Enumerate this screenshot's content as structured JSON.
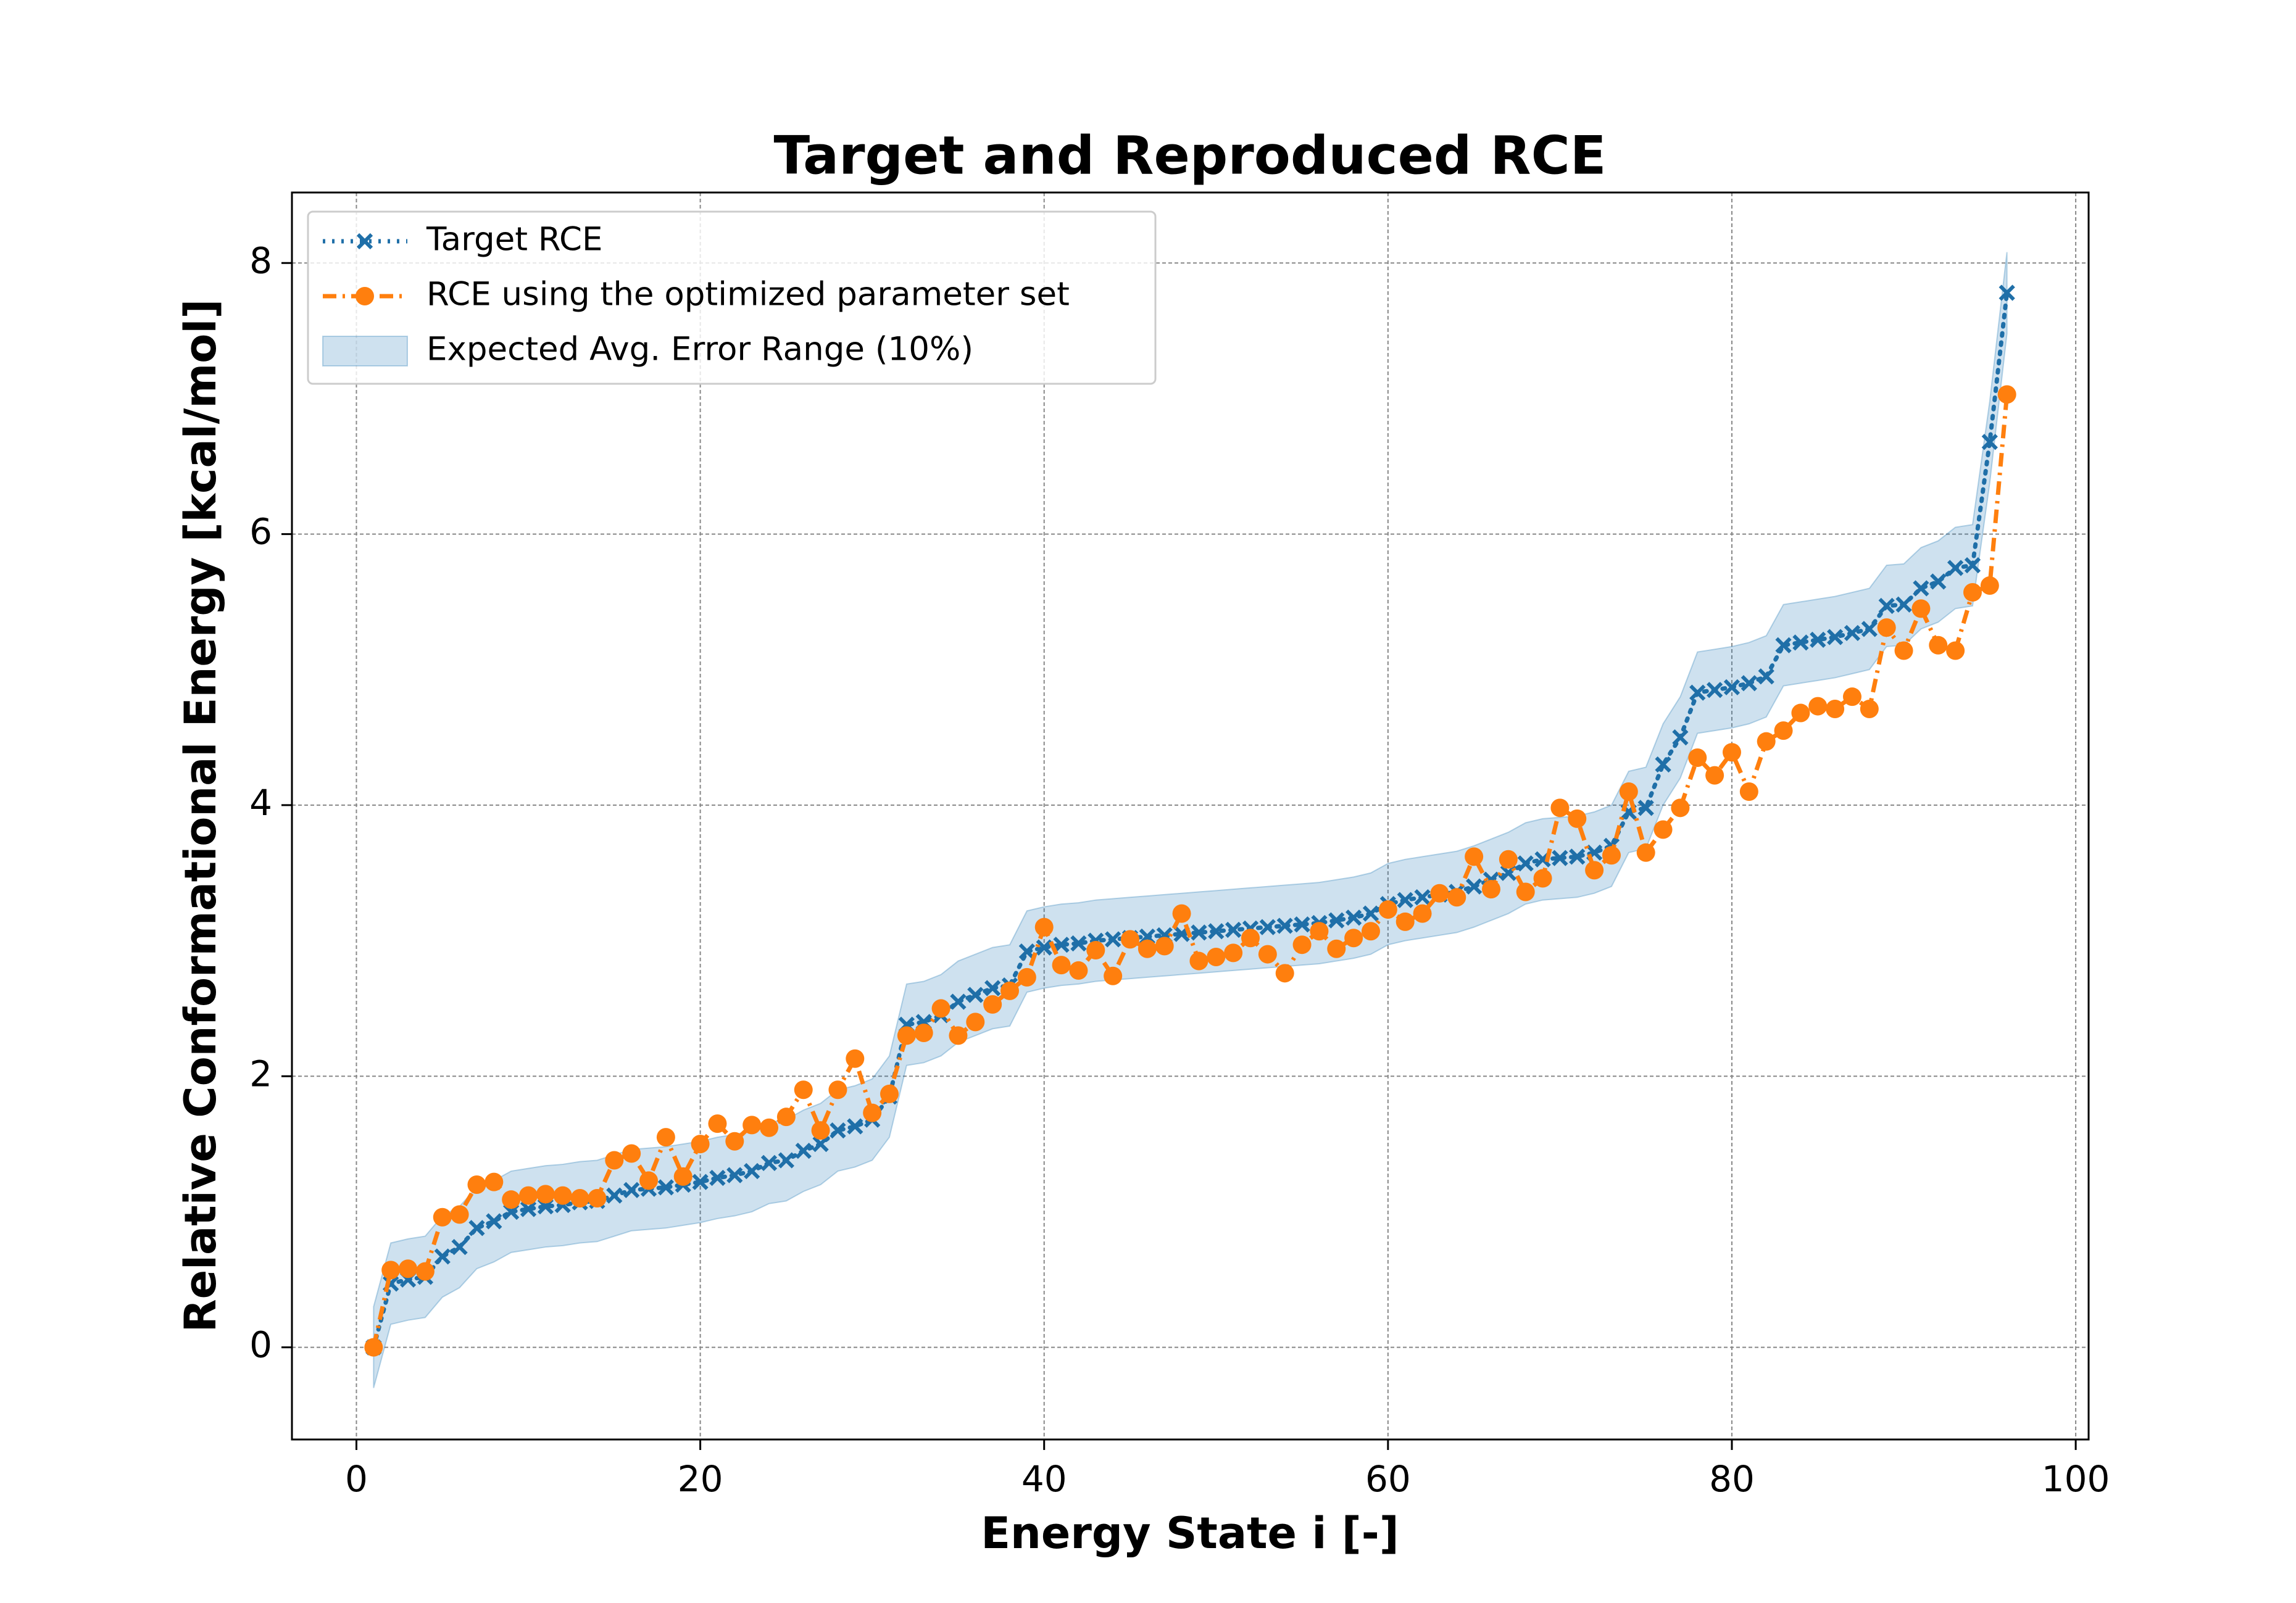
{
  "chart_data": {
    "type": "line",
    "title": "Target and Reproduced RCE",
    "xlabel": "Energy State i [-]",
    "ylabel": "Relative Conformational Energy [kcal/mol]",
    "x": [
      1,
      2,
      3,
      4,
      5,
      6,
      7,
      8,
      9,
      10,
      11,
      12,
      13,
      14,
      15,
      16,
      17,
      18,
      19,
      20,
      21,
      22,
      23,
      24,
      25,
      26,
      27,
      28,
      29,
      30,
      31,
      32,
      33,
      34,
      35,
      36,
      37,
      38,
      39,
      40,
      41,
      42,
      43,
      44,
      45,
      46,
      47,
      48,
      49,
      50,
      51,
      52,
      53,
      54,
      55,
      56,
      57,
      58,
      59,
      60,
      61,
      62,
      63,
      64,
      65,
      66,
      67,
      68,
      69,
      70,
      71,
      72,
      73,
      74,
      75,
      76,
      77,
      78,
      79,
      80,
      81,
      82,
      83,
      84,
      85,
      86,
      87,
      88,
      89,
      90,
      91,
      92,
      93,
      94,
      95,
      96
    ],
    "series": [
      {
        "name": "Target RCE",
        "color": "#1f6fa8",
        "marker": "x",
        "dash": "dotted",
        "values": [
          0,
          0.47,
          0.5,
          0.52,
          0.67,
          0.74,
          0.88,
          0.93,
          1.0,
          1.02,
          1.04,
          1.05,
          1.07,
          1.08,
          1.12,
          1.16,
          1.17,
          1.18,
          1.2,
          1.22,
          1.25,
          1.27,
          1.3,
          1.36,
          1.38,
          1.45,
          1.5,
          1.6,
          1.63,
          1.68,
          1.85,
          2.38,
          2.4,
          2.45,
          2.55,
          2.6,
          2.65,
          2.67,
          2.92,
          2.95,
          2.97,
          2.98,
          3.0,
          3.01,
          3.02,
          3.03,
          3.04,
          3.05,
          3.06,
          3.07,
          3.08,
          3.09,
          3.1,
          3.11,
          3.12,
          3.13,
          3.15,
          3.17,
          3.2,
          3.27,
          3.3,
          3.32,
          3.34,
          3.36,
          3.4,
          3.45,
          3.5,
          3.57,
          3.6,
          3.61,
          3.62,
          3.65,
          3.7,
          3.95,
          3.98,
          4.3,
          4.5,
          4.83,
          4.85,
          4.87,
          4.9,
          4.95,
          5.18,
          5.2,
          5.22,
          5.24,
          5.27,
          5.3,
          5.47,
          5.48,
          5.6,
          5.65,
          5.75,
          5.77,
          6.68,
          7.78
        ]
      },
      {
        "name": "RCE using the optimized parameter set",
        "color": "#ff7f0e",
        "marker": "o",
        "dash": "dashdot",
        "values": [
          0,
          0.57,
          0.58,
          0.56,
          0.96,
          0.98,
          1.2,
          1.22,
          1.09,
          1.12,
          1.13,
          1.12,
          1.1,
          1.1,
          1.38,
          1.43,
          1.23,
          1.55,
          1.26,
          1.5,
          1.65,
          1.52,
          1.64,
          1.62,
          1.7,
          1.9,
          1.6,
          1.9,
          2.13,
          1.73,
          1.87,
          2.3,
          2.32,
          2.5,
          2.3,
          2.4,
          2.53,
          2.63,
          2.73,
          3.1,
          2.82,
          2.78,
          2.93,
          2.74,
          3.01,
          2.94,
          2.96,
          3.2,
          2.85,
          2.88,
          2.91,
          3.02,
          2.9,
          2.76,
          2.97,
          3.07,
          2.94,
          3.02,
          3.07,
          3.23,
          3.14,
          3.2,
          3.35,
          3.32,
          3.62,
          3.38,
          3.6,
          3.36,
          3.46,
          3.98,
          3.9,
          3.52,
          3.63,
          4.1,
          3.65,
          3.82,
          3.98,
          4.35,
          4.22,
          4.39,
          4.1,
          4.47,
          4.55,
          4.68,
          4.73,
          4.71,
          4.8,
          4.71,
          5.31,
          5.14,
          5.45,
          5.18,
          5.14,
          5.57,
          5.62,
          7.03
        ]
      }
    ],
    "band": {
      "name": "Expected Avg. Error Range (10%)",
      "color": "#1f77b4",
      "error": 0.3
    },
    "xlim": [
      -3.75,
      100.75
    ],
    "ylim": [
      -0.68,
      8.52
    ],
    "xticks": [
      0,
      20,
      40,
      60,
      80,
      100
    ],
    "yticks": [
      0,
      2,
      4,
      6,
      8
    ],
    "grid": true,
    "legend": "upper left"
  }
}
